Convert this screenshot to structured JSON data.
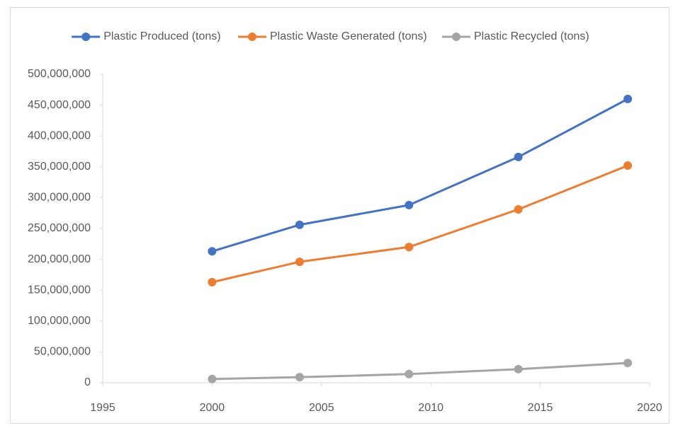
{
  "chart_data": {
    "type": "line",
    "x": [
      2000,
      2004,
      2009,
      2014,
      2019
    ],
    "series": [
      {
        "name": "Plastic Produced (tons)",
        "color": "#4472c4",
        "values": [
          213000000,
          256000000,
          288000000,
          366000000,
          460000000
        ]
      },
      {
        "name": "Plastic Waste Generated (tons)",
        "color": "#ed7d31",
        "values": [
          163000000,
          196000000,
          220000000,
          281000000,
          352000000
        ]
      },
      {
        "name": "Plastic Recycled (tons)",
        "color": "#a5a5a5",
        "values": [
          6000000,
          9000000,
          14000000,
          22000000,
          32000000
        ]
      }
    ],
    "xlim": [
      1995,
      2020
    ],
    "xticks": [
      1995,
      2000,
      2005,
      2010,
      2015,
      2020
    ],
    "ylim": [
      0,
      500000000
    ],
    "yticks": [
      0,
      {
        "value": 50000000,
        "label": "50,000,000"
      },
      {
        "value": 100000000,
        "label": "100,000,000"
      },
      {
        "value": 150000000,
        "label": "150,000,000"
      },
      {
        "value": 200000000,
        "label": "200,000,000"
      },
      {
        "value": 250000000,
        "label": "250,000,000"
      },
      {
        "value": 300000000,
        "label": "300,000,000"
      },
      {
        "value": 350000000,
        "label": "350,000,000"
      },
      {
        "value": 400000000,
        "label": "400,000,000"
      },
      {
        "value": 450000000,
        "label": "450,000,000"
      },
      {
        "value": 500000000,
        "label": "500,000,000"
      }
    ],
    "grid": false,
    "legend": "top"
  }
}
